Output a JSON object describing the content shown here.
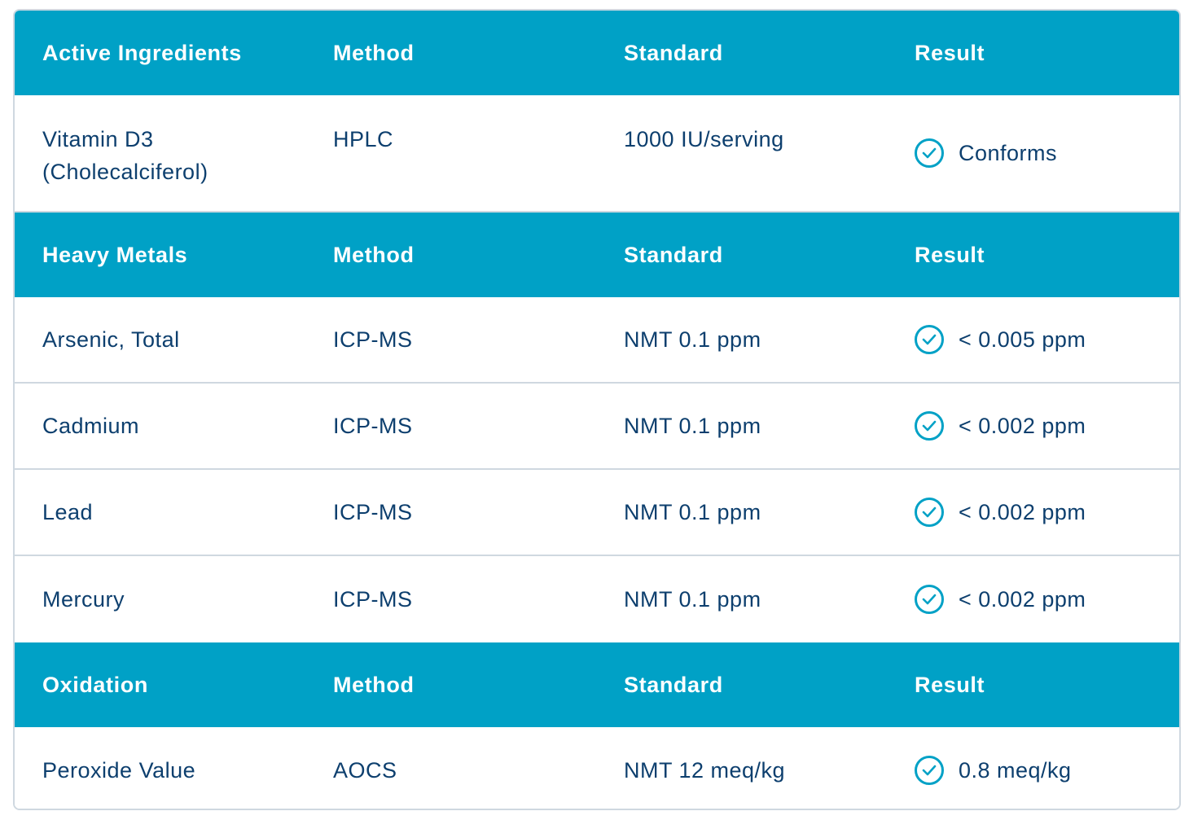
{
  "sections": [
    {
      "header": {
        "category": "Active Ingredients",
        "method": "Method",
        "standard": "Standard",
        "result": "Result"
      },
      "rows": [
        {
          "name": "Vitamin D3 (Cholecalciferol)",
          "name_line1": "Vitamin D3",
          "name_line2": "(Cholecalciferol)",
          "method": "HPLC",
          "standard": "1000 IU/serving",
          "result": "Conforms",
          "status_icon": "check-circle-icon"
        }
      ]
    },
    {
      "header": {
        "category": "Heavy Metals",
        "method": "Method",
        "standard": "Standard",
        "result": "Result"
      },
      "rows": [
        {
          "name": "Arsenic, Total",
          "method": "ICP-MS",
          "standard": "NMT 0.1 ppm",
          "result": "< 0.005 ppm",
          "status_icon": "check-circle-icon"
        },
        {
          "name": "Cadmium",
          "method": "ICP-MS",
          "standard": "NMT 0.1 ppm",
          "result": "< 0.002 ppm",
          "status_icon": "check-circle-icon"
        },
        {
          "name": "Lead",
          "method": "ICP-MS",
          "standard": "NMT 0.1 ppm",
          "result": "< 0.002 ppm",
          "status_icon": "check-circle-icon"
        },
        {
          "name": "Mercury",
          "method": "ICP-MS",
          "standard": "NMT 0.1 ppm",
          "result": "< 0.002 ppm",
          "status_icon": "check-circle-icon"
        }
      ]
    },
    {
      "header": {
        "category": "Oxidation",
        "method": "Method",
        "standard": "Standard",
        "result": "Result"
      },
      "rows": [
        {
          "name": "Peroxide Value",
          "method": "AOCS",
          "standard": "NMT 12 meq/kg",
          "result": "0.8 meq/kg",
          "status_icon": "check-circle-icon"
        }
      ]
    }
  ],
  "colors": {
    "header_bg": "#00a1c6",
    "header_text": "#ffffff",
    "body_text": "#0d3f6e",
    "divider": "#cfd8e0",
    "check": "#00a1c6"
  }
}
